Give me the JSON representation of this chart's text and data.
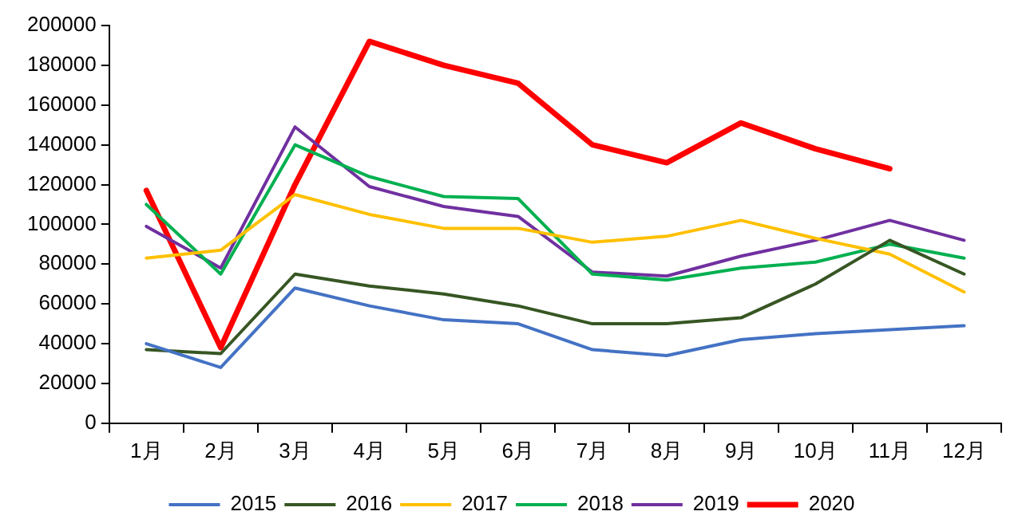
{
  "chart_data": {
    "type": "line",
    "categories": [
      "1月",
      "2月",
      "3月",
      "4月",
      "5月",
      "6月",
      "7月",
      "8月",
      "9月",
      "10月",
      "11月",
      "12月"
    ],
    "series": [
      {
        "name": "2015",
        "color": "#4472c4",
        "values": [
          40000,
          28000,
          68000,
          59000,
          52000,
          50000,
          37000,
          34000,
          42000,
          45000,
          47000,
          49000
        ]
      },
      {
        "name": "2016",
        "color": "#375623",
        "values": [
          37000,
          35000,
          75000,
          69000,
          65000,
          59000,
          50000,
          50000,
          53000,
          70000,
          92000,
          75000
        ]
      },
      {
        "name": "2017",
        "color": "#ffc000",
        "values": [
          83000,
          87000,
          115000,
          105000,
          98000,
          98000,
          91000,
          94000,
          102000,
          93000,
          85000,
          66000
        ]
      },
      {
        "name": "2018",
        "color": "#00b050",
        "values": [
          110000,
          75000,
          140000,
          124000,
          114000,
          113000,
          75000,
          72000,
          78000,
          81000,
          90000,
          83000
        ]
      },
      {
        "name": "2019",
        "color": "#7030a0",
        "values": [
          99000,
          78000,
          149000,
          119000,
          109000,
          104000,
          76000,
          74000,
          84000,
          92000,
          102000,
          92000
        ]
      },
      {
        "name": "2020",
        "color": "#ff0000",
        "values": [
          117000,
          38000,
          120000,
          192000,
          180000,
          171000,
          140000,
          131000,
          151000,
          138000,
          128000,
          null
        ]
      }
    ],
    "ylim": [
      0,
      200000
    ],
    "yticks": [
      0,
      20000,
      40000,
      60000,
      80000,
      100000,
      120000,
      140000,
      160000,
      180000,
      200000
    ],
    "grid": false,
    "legend": "bottom",
    "marker": "none",
    "line_style": "solid"
  }
}
